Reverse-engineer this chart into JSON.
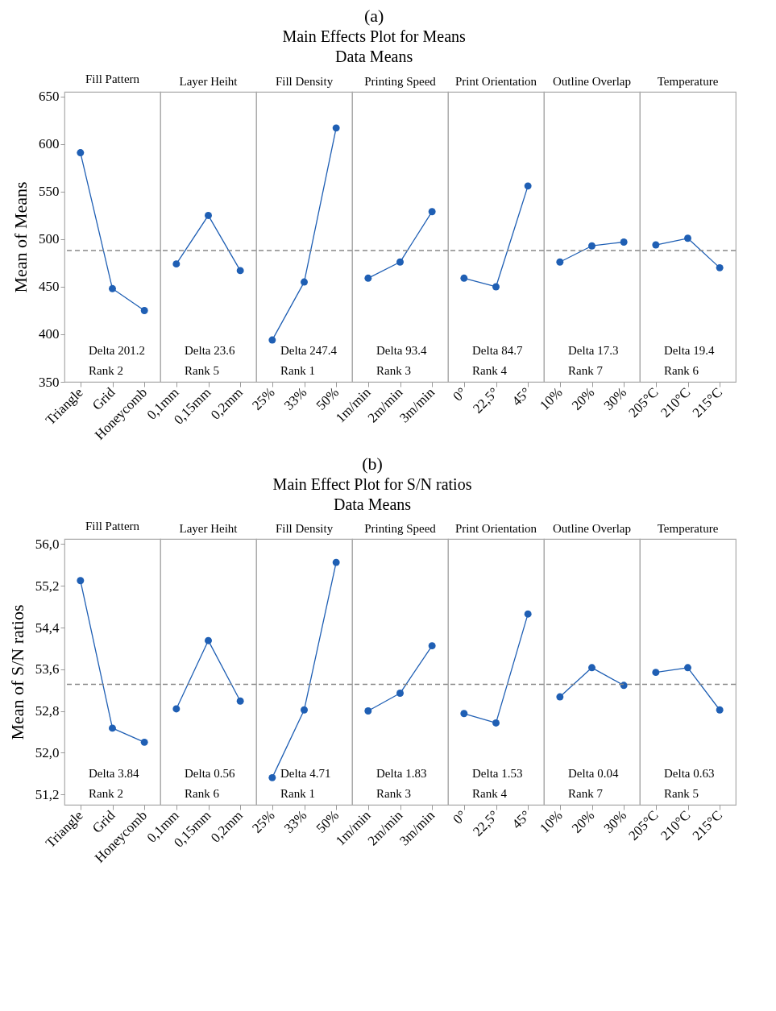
{
  "chart_data": [
    {
      "type": "line",
      "title": "Fill Pattern",
      "ylabel": "Mean of Means",
      "categories": [
        "Triangle",
        "Grid",
        "Honeycomb"
      ],
      "values": [
        591,
        448,
        425
      ],
      "color": "#1f5fb4",
      "marker": "circle",
      "ylim": [
        350,
        655
      ],
      "yticks": [
        350,
        400,
        450,
        500,
        550,
        600,
        650
      ],
      "ref_lines": [
        {
          "axis": "y",
          "value": 488,
          "color": "#888888",
          "line_style": "dashed"
        }
      ],
      "annotations": [
        "Delta 201.2",
        "Rank 2"
      ]
    },
    {
      "type": "line",
      "title": "Layer Heiht",
      "categories": [
        "0,1mm",
        "0,15mm",
        "0,2mm"
      ],
      "values": [
        474,
        525,
        467
      ],
      "color": "#1f5fb4",
      "marker": "circle",
      "ylim": [
        350,
        655
      ],
      "tick_labels": "x",
      "ref_lines": [
        {
          "axis": "y",
          "value": 488,
          "color": "#888888",
          "line_style": "dashed"
        }
      ],
      "annotations": [
        "Delta 23.6",
        "Rank 5"
      ]
    },
    {
      "type": "line",
      "title": "Fill Density",
      "categories": [
        "25%",
        "33%",
        "50%"
      ],
      "values": [
        394,
        455,
        617
      ],
      "color": "#1f5fb4",
      "marker": "circle",
      "ylim": [
        350,
        655
      ],
      "tick_labels": "x",
      "ref_lines": [
        {
          "axis": "y",
          "value": 488,
          "color": "#888888",
          "line_style": "dashed"
        }
      ],
      "annotations": [
        "Delta 247.4",
        "Rank 1"
      ]
    },
    {
      "type": "line",
      "subtitle": "(a)\nMain Effects Plot for Means\nData Means",
      "title": "Printing Speed",
      "categories": [
        "1m/min",
        "2m/min",
        "3m/min"
      ],
      "values": [
        459,
        476,
        529
      ],
      "color": "#1f5fb4",
      "marker": "circle",
      "ylim": [
        350,
        655
      ],
      "tick_labels": "x",
      "ref_lines": [
        {
          "axis": "y",
          "value": 488,
          "color": "#888888",
          "line_style": "dashed"
        }
      ],
      "annotations": [
        "Delta 93.4",
        "Rank 3"
      ]
    },
    {
      "type": "line",
      "title": "Print Orientation",
      "categories": [
        "0°",
        "22,5°",
        "45°"
      ],
      "values": [
        459,
        450,
        556
      ],
      "color": "#1f5fb4",
      "marker": "circle",
      "ylim": [
        350,
        655
      ],
      "tick_labels": "x",
      "ref_lines": [
        {
          "axis": "y",
          "value": 488,
          "color": "#888888",
          "line_style": "dashed"
        }
      ],
      "annotations": [
        "Delta 84.7",
        "Rank 4"
      ]
    },
    {
      "type": "line",
      "title": "Outline Overlap",
      "categories": [
        "10%",
        "20%",
        "30%"
      ],
      "values": [
        476,
        493,
        497
      ],
      "color": "#1f5fb4",
      "marker": "circle",
      "ylim": [
        350,
        655
      ],
      "tick_labels": "x",
      "ref_lines": [
        {
          "axis": "y",
          "value": 488,
          "color": "#888888",
          "line_style": "dashed"
        }
      ],
      "annotations": [
        "Delta 17.3",
        "Rank 7"
      ]
    },
    {
      "type": "line",
      "title": "Temperature",
      "categories": [
        "205°C",
        "210°C",
        "215°C"
      ],
      "values": [
        494,
        501,
        470
      ],
      "color": "#1f5fb4",
      "marker": "circle",
      "ylim": [
        350,
        655
      ],
      "tick_labels": "x",
      "ref_lines": [
        {
          "axis": "y",
          "value": 488,
          "color": "#888888",
          "line_style": "dashed"
        }
      ],
      "annotations": [
        "Delta 19.4",
        "Rank 6"
      ]
    },
    {
      "type": "line",
      "title": "Fill Pattern",
      "ylabel": "Mean of S/N ratios",
      "categories": [
        "Triangle",
        "Grid",
        "Honeycomb"
      ],
      "values": [
        55.3,
        52.47,
        52.2
      ],
      "color": "#1f5fb4",
      "marker": "circle",
      "ylim": [
        51.0,
        56.1
      ],
      "yticks": [
        {
          "value": 51.2,
          "label": "51,2"
        },
        {
          "value": 52.0,
          "label": "52,0"
        },
        {
          "value": 52.8,
          "label": "52,8"
        },
        {
          "value": 53.6,
          "label": "53,6"
        },
        {
          "value": 54.4,
          "label": "54,4"
        },
        {
          "value": 55.2,
          "label": "55,2"
        },
        {
          "value": 56.0,
          "label": "56,0"
        }
      ],
      "ref_lines": [
        {
          "axis": "y",
          "value": 53.31,
          "color": "#888888",
          "line_style": "dashed"
        }
      ],
      "annotations": [
        "Delta 3.84",
        "Rank 2"
      ]
    },
    {
      "type": "line",
      "title": "Layer Heiht",
      "categories": [
        "0,1mm",
        "0,15mm",
        "0,2mm"
      ],
      "values": [
        52.84,
        54.15,
        52.99
      ],
      "color": "#1f5fb4",
      "marker": "circle",
      "ylim": [
        51.0,
        56.1
      ],
      "tick_labels": "x",
      "ref_lines": [
        {
          "axis": "y",
          "value": 53.31,
          "color": "#888888",
          "line_style": "dashed"
        }
      ],
      "annotations": [
        "Delta 0.56",
        "Rank 6"
      ]
    },
    {
      "type": "line",
      "title": "Fill Density",
      "categories": [
        "25%",
        "33%",
        "50%"
      ],
      "values": [
        51.52,
        52.82,
        55.65
      ],
      "color": "#1f5fb4",
      "marker": "circle",
      "ylim": [
        51.0,
        56.1
      ],
      "tick_labels": "x",
      "ref_lines": [
        {
          "axis": "y",
          "value": 53.31,
          "color": "#888888",
          "line_style": "dashed"
        }
      ],
      "annotations": [
        "Delta 4.71",
        "Rank 1"
      ]
    },
    {
      "type": "line",
      "subtitle": "(b)\nMain Effect Plot for S/N ratios\nData Means",
      "title": "Printing Speed",
      "categories": [
        "1m/min",
        "2m/min",
        "3m/min"
      ],
      "values": [
        52.8,
        53.14,
        54.05
      ],
      "color": "#1f5fb4",
      "marker": "circle",
      "ylim": [
        51.0,
        56.1
      ],
      "tick_labels": "x",
      "ref_lines": [
        {
          "axis": "y",
          "value": 53.31,
          "color": "#888888",
          "line_style": "dashed"
        }
      ],
      "annotations": [
        "Delta 1.83",
        "Rank 3"
      ]
    },
    {
      "type": "line",
      "title": "Print Orientation",
      "categories": [
        "0°",
        "22,5°",
        "45°"
      ],
      "values": [
        52.75,
        52.57,
        54.66
      ],
      "color": "#1f5fb4",
      "marker": "circle",
      "ylim": [
        51.0,
        56.1
      ],
      "tick_labels": "x",
      "ref_lines": [
        {
          "axis": "y",
          "value": 53.31,
          "color": "#888888",
          "line_style": "dashed"
        }
      ],
      "annotations": [
        "Delta 1.53",
        "Rank 4"
      ]
    },
    {
      "type": "line",
      "title": "Outline Overlap",
      "categories": [
        "10%",
        "20%",
        "30%"
      ],
      "values": [
        53.07,
        53.63,
        53.29
      ],
      "color": "#1f5fb4",
      "marker": "circle",
      "ylim": [
        51.0,
        56.1
      ],
      "tick_labels": "x",
      "ref_lines": [
        {
          "axis": "y",
          "value": 53.31,
          "color": "#888888",
          "line_style": "dashed"
        }
      ],
      "annotations": [
        "Delta 0.04",
        "Rank 7"
      ]
    },
    {
      "type": "line",
      "title": "Temperature",
      "categories": [
        "205°C",
        "210°C",
        "215°C"
      ],
      "values": [
        53.54,
        53.63,
        52.82
      ],
      "color": "#1f5fb4",
      "marker": "circle",
      "ylim": [
        51.0,
        56.1
      ],
      "tick_labels": "x",
      "ref_lines": [
        {
          "axis": "y",
          "value": 53.31,
          "color": "#888888",
          "line_style": "dashed"
        }
      ],
      "annotations": [
        "Delta 0.63",
        "Rank 5"
      ]
    }
  ]
}
